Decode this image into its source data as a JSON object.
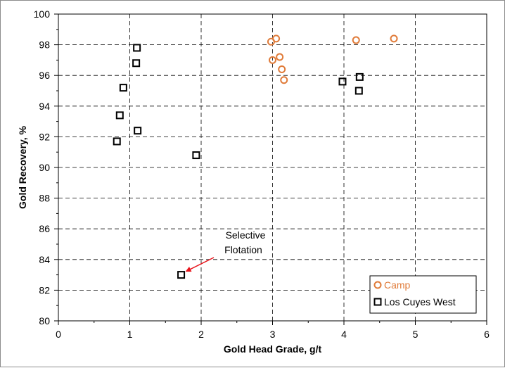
{
  "chart_data": {
    "type": "scatter",
    "title": "",
    "xlabel": "Gold Head Grade, g/t",
    "ylabel": "Gold Recovery, %",
    "xlim": [
      0,
      6
    ],
    "ylim": [
      80,
      100
    ],
    "xticks": [
      0,
      1,
      2,
      3,
      4,
      5,
      6
    ],
    "yticks": [
      80,
      82,
      84,
      86,
      88,
      90,
      92,
      94,
      96,
      98,
      100
    ],
    "grid": "dashed",
    "legend_position": "bottom-right",
    "series": [
      {
        "name": "Camp",
        "marker": "circle",
        "color": "#e07b39",
        "points": [
          {
            "x": 2.98,
            "y": 98.2
          },
          {
            "x": 3.05,
            "y": 98.4
          },
          {
            "x": 3.0,
            "y": 97.0
          },
          {
            "x": 3.1,
            "y": 97.2
          },
          {
            "x": 3.13,
            "y": 96.4
          },
          {
            "x": 3.16,
            "y": 95.7
          },
          {
            "x": 4.17,
            "y": 98.3
          },
          {
            "x": 4.7,
            "y": 98.4
          }
        ]
      },
      {
        "name": "Los Cuyes West",
        "marker": "square",
        "color": "#000000",
        "points": [
          {
            "x": 1.1,
            "y": 97.8
          },
          {
            "x": 1.09,
            "y": 96.8
          },
          {
            "x": 0.91,
            "y": 95.2
          },
          {
            "x": 0.86,
            "y": 93.4
          },
          {
            "x": 1.11,
            "y": 92.4
          },
          {
            "x": 0.82,
            "y": 91.7
          },
          {
            "x": 1.93,
            "y": 90.8
          },
          {
            "x": 1.72,
            "y": 83.0
          },
          {
            "x": 3.98,
            "y": 95.6
          },
          {
            "x": 4.22,
            "y": 95.9
          },
          {
            "x": 4.21,
            "y": 95.0
          }
        ]
      }
    ],
    "annotations": [
      {
        "lines": [
          "Selective",
          "Flotation"
        ],
        "arrow_to": {
          "x": 1.72,
          "y": 83.0
        }
      }
    ]
  }
}
